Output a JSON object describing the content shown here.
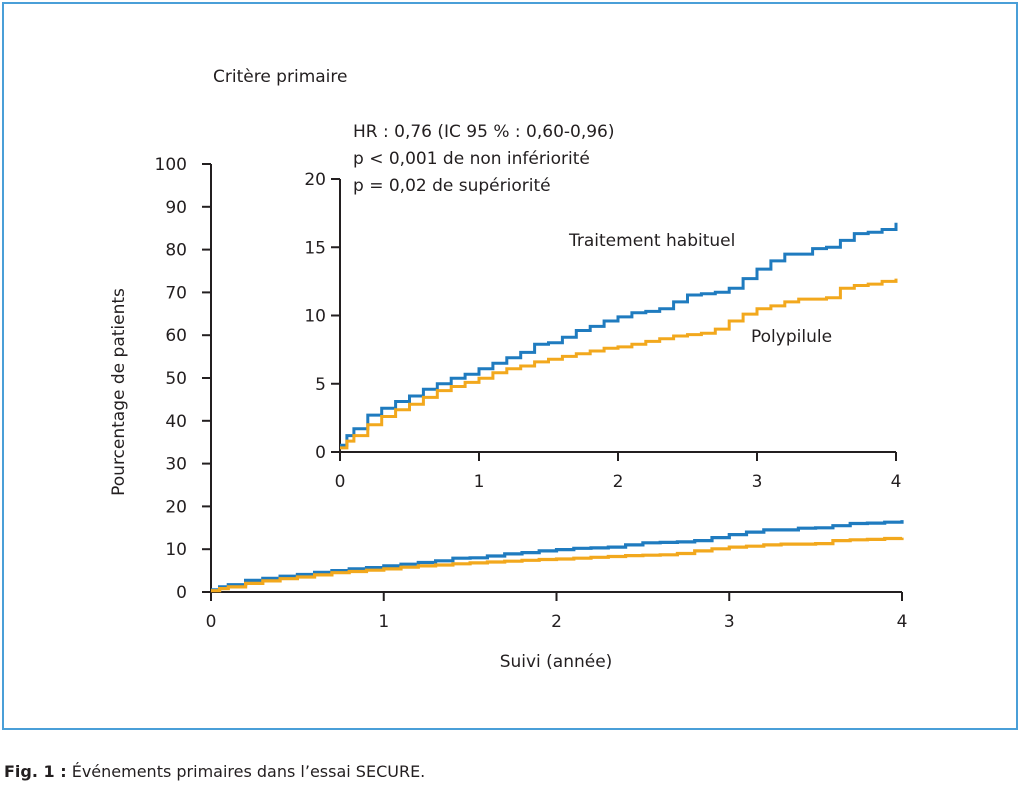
{
  "figure": {
    "panel_title": "Critère primaire",
    "caption_label": "Fig. 1 :",
    "caption_text": "Événements primaires dans l’essai SECURE.",
    "colors": {
      "frame": "#4a9fd8",
      "usual_care": "#1f7bbf",
      "polypill": "#f2a81d",
      "axis": "#231f20"
    }
  },
  "chart_data": [
    {
      "type": "line",
      "panel": "main",
      "xlabel": "Suivi (année)",
      "ylabel": "Pourcentage de patients",
      "xlim": [
        0,
        4
      ],
      "ylim": [
        0,
        100
      ],
      "xticks": [
        0,
        1,
        2,
        3,
        4
      ],
      "yticks": [
        0,
        10,
        20,
        30,
        40,
        50,
        60,
        70,
        80,
        90,
        100
      ],
      "grid": false,
      "series": [
        {
          "name": "Traitement habituel",
          "color": "#1f7bbf",
          "x": [
            0,
            0.05,
            0.1,
            0.2,
            0.3,
            0.4,
            0.5,
            0.6,
            0.7,
            0.8,
            0.9,
            1.0,
            1.1,
            1.2,
            1.3,
            1.4,
            1.5,
            1.6,
            1.7,
            1.8,
            1.9,
            2.0,
            2.1,
            2.2,
            2.3,
            2.4,
            2.5,
            2.6,
            2.7,
            2.8,
            2.9,
            3.0,
            3.1,
            3.2,
            3.3,
            3.4,
            3.5,
            3.6,
            3.7,
            3.8,
            3.9,
            4.0
          ],
          "y": [
            0.5,
            1.2,
            1.7,
            2.7,
            3.2,
            3.7,
            4.1,
            4.6,
            5.0,
            5.4,
            5.7,
            6.1,
            6.5,
            6.9,
            7.3,
            7.9,
            8.0,
            8.4,
            8.9,
            9.2,
            9.6,
            9.9,
            10.2,
            10.3,
            10.5,
            11.0,
            11.5,
            11.6,
            11.7,
            12.0,
            12.7,
            13.4,
            14.0,
            14.5,
            14.5,
            14.9,
            15.0,
            15.5,
            16.0,
            16.1,
            16.3,
            16.8
          ]
        },
        {
          "name": "Polypilule",
          "color": "#f2a81d",
          "x": [
            0,
            0.05,
            0.1,
            0.2,
            0.3,
            0.4,
            0.5,
            0.6,
            0.7,
            0.8,
            0.9,
            1.0,
            1.1,
            1.2,
            1.3,
            1.4,
            1.5,
            1.6,
            1.7,
            1.8,
            1.9,
            2.0,
            2.1,
            2.2,
            2.3,
            2.4,
            2.5,
            2.6,
            2.7,
            2.8,
            2.9,
            3.0,
            3.1,
            3.2,
            3.3,
            3.4,
            3.5,
            3.6,
            3.7,
            3.8,
            3.9,
            4.0
          ],
          "y": [
            0.3,
            0.8,
            1.2,
            2.0,
            2.6,
            3.1,
            3.5,
            4.0,
            4.5,
            4.8,
            5.1,
            5.4,
            5.8,
            6.1,
            6.3,
            6.6,
            6.8,
            7.0,
            7.2,
            7.4,
            7.6,
            7.7,
            7.9,
            8.1,
            8.3,
            8.5,
            8.6,
            8.7,
            9.0,
            9.6,
            10.1,
            10.5,
            10.7,
            11.0,
            11.2,
            11.2,
            11.3,
            12.0,
            12.2,
            12.3,
            12.5,
            12.7
          ]
        }
      ]
    },
    {
      "type": "line",
      "panel": "inset",
      "xlim": [
        0,
        4
      ],
      "ylim": [
        0,
        20
      ],
      "xticks": [
        0,
        1,
        2,
        3,
        4
      ],
      "yticks": [
        0,
        5,
        10,
        15,
        20
      ],
      "grid": false,
      "annotations": [
        "HR : 0,76 (IC 95 % : 0,60-0,96)",
        "p < 0,001 de non infériorité",
        "p = 0,02 de supériorité"
      ],
      "series_labels": [
        "Traitement habituel",
        "Polypilule"
      ]
    }
  ]
}
